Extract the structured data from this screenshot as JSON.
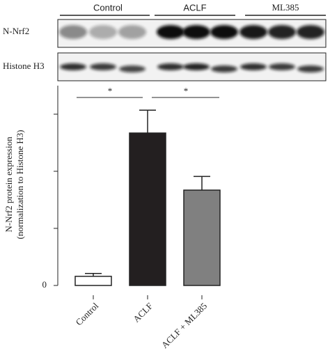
{
  "blot": {
    "groups": [
      "Control",
      "ACLF",
      "ML385"
    ],
    "rows": [
      "N-Nrf2",
      "Histone H3"
    ]
  },
  "chart_data": {
    "type": "bar",
    "y_label_lines": [
      "N-Nrf2 protein expression",
      "(normalization to Histone H3)"
    ],
    "categories": [
      "Control",
      "ACLF",
      "ACLF + ML385"
    ],
    "values": [
      0.16,
      2.67,
      1.67
    ],
    "errors": [
      0.05,
      0.4,
      0.24
    ],
    "colors": [
      "#ffffff",
      "#231f20",
      "#808080"
    ],
    "ylim": [
      0,
      3.5
    ],
    "yticks": [
      0
    ],
    "minor_yticks": [
      1,
      2,
      3
    ],
    "significance": [
      {
        "from": 0,
        "to": 1,
        "label": "*"
      },
      {
        "from": 1,
        "to": 2,
        "label": "*"
      }
    ]
  }
}
